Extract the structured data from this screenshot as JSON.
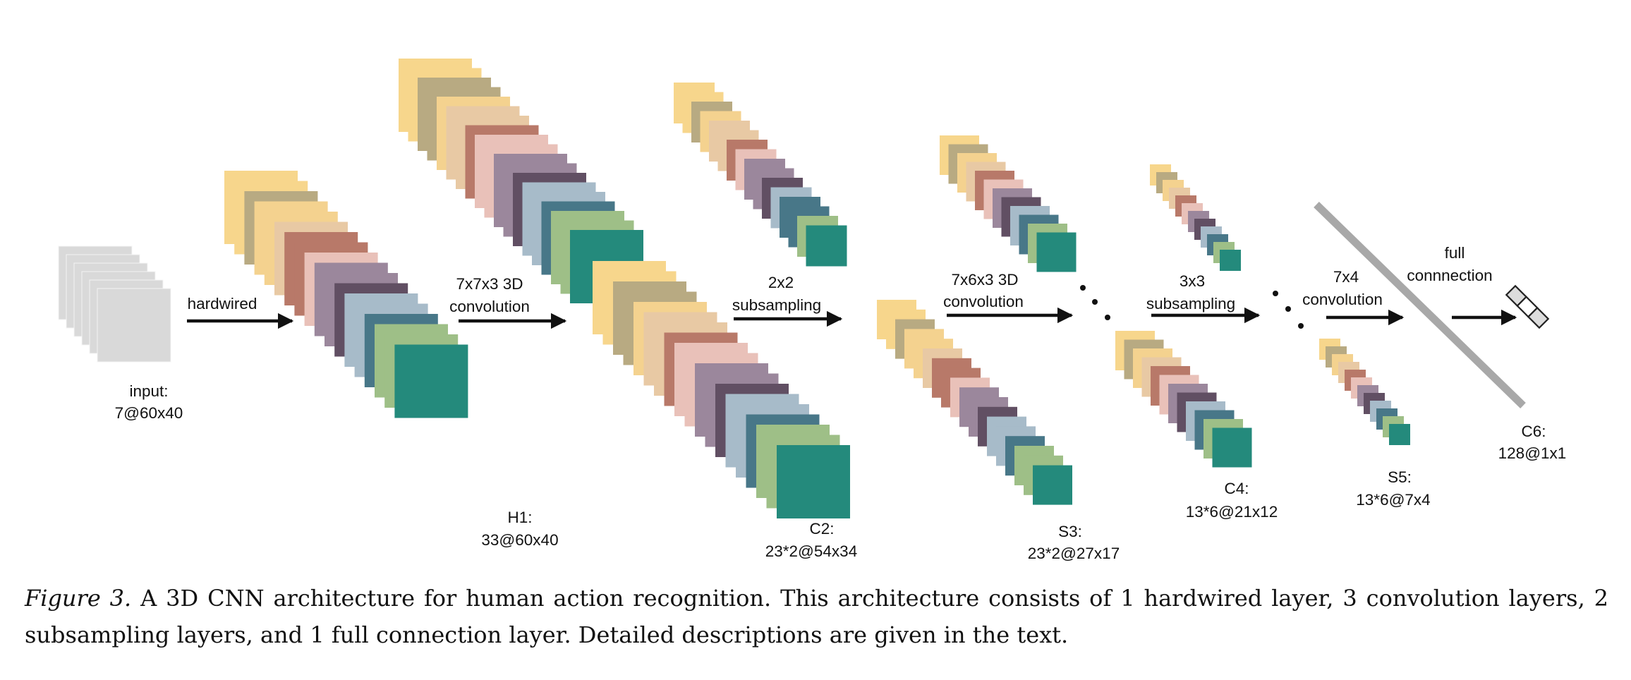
{
  "palette": {
    "input": "#d9d9d9",
    "input_outline": "#a9a9a9",
    "ramp": [
      "#f7d68c",
      "#b8aa82",
      "#f4d28f",
      "#e8c9a4",
      "#b87969",
      "#e9c1b9",
      "#9b879c",
      "#614f63",
      "#a7bbc9",
      "#487788",
      "#9ebf87",
      "#248a7c"
    ]
  },
  "layers": [
    {
      "id": "input",
      "label_name": "input:",
      "label_dims": "7@60x40"
    },
    {
      "id": "h1",
      "label_name": "H1:",
      "label_dims": "33@60x40"
    },
    {
      "id": "c2",
      "label_name": "C2:",
      "label_dims": "23*2@54x34"
    },
    {
      "id": "s3",
      "label_name": "S3:",
      "label_dims": "23*2@27x17"
    },
    {
      "id": "c4",
      "label_name": "C4:",
      "label_dims": "13*6@21x12"
    },
    {
      "id": "s5",
      "label_name": "S5:",
      "label_dims": "13*6@7x4"
    },
    {
      "id": "c6",
      "label_name": "C6:",
      "label_dims": "128@1x1"
    }
  ],
  "operations": [
    {
      "id": "hardwired",
      "line1": "hardwired",
      "line2": ""
    },
    {
      "id": "conv3d-7x7x3",
      "line1": "7x7x3 3D",
      "line2": "convolution"
    },
    {
      "id": "subsample-2x2",
      "line1": "2x2",
      "line2": "subsampling"
    },
    {
      "id": "conv3d-7x6x3",
      "line1": "7x6x3 3D",
      "line2": "convolution"
    },
    {
      "id": "subsample-3x3",
      "line1": "3x3",
      "line2": "subsampling"
    },
    {
      "id": "conv-7x4",
      "line1": "7x4",
      "line2": "convolution"
    },
    {
      "id": "full-connection",
      "line1": "full",
      "line2": "connnection"
    }
  ],
  "caption": {
    "prefix": "Figure 3.",
    "text": " A 3D CNN architecture for human action recognition. This architecture consists of 1 hardwired layer, 3 convolution layers, 2 subsampling layers, and 1 full connection layer. Detailed descriptions are given in the text."
  }
}
